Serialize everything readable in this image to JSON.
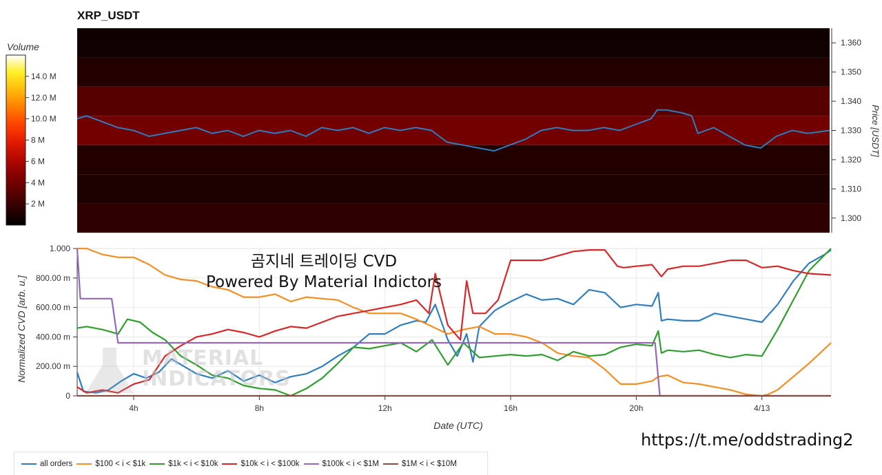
{
  "title": "XRP_USDT",
  "overlay": {
    "line1": "곰지네 트레이딩 CVD",
    "line2": "Powered By Material Indictors"
  },
  "watermark": {
    "line1": "MATERIAL",
    "line2": "INDICATORS"
  },
  "link": "https://t.me/oddstrading2",
  "colors": {
    "all_orders": "#2f7dbf",
    "s100_1k": "#f48d22",
    "s1k_10k": "#2e9e2e",
    "s10k_100k": "#d62728",
    "s100k_1m": "#9467bd",
    "s1m_10m": "#8c4a3c"
  },
  "chart_data": [
    {
      "type": "heatmap",
      "title": "XRP_USDT",
      "ylabel": "Price [USDT]",
      "ylim": [
        1.295,
        1.365
      ],
      "yticks": [
        "1.300",
        "1.310",
        "1.320",
        "1.330",
        "1.340",
        "1.350",
        "1.360"
      ],
      "colorbar": {
        "title": "Volume",
        "ticks": [
          "2 M",
          "4 M",
          "6 M",
          "8 M",
          "10.0 M",
          "12.0 M",
          "14.0 M"
        ],
        "tick_values": [
          2,
          4,
          6,
          8,
          10,
          12,
          14
        ],
        "max": 16
      },
      "bands": [
        {
          "price_low": 1.355,
          "price_high": 1.365,
          "volume_m": 0.6
        },
        {
          "price_low": 1.345,
          "price_high": 1.355,
          "volume_m": 1.2
        },
        {
          "price_low": 1.335,
          "price_high": 1.345,
          "volume_m": 3.0
        },
        {
          "price_low": 1.325,
          "price_high": 1.335,
          "volume_m": 4.0
        },
        {
          "price_low": 1.315,
          "price_high": 1.325,
          "volume_m": 1.2
        },
        {
          "price_low": 1.305,
          "price_high": 1.315,
          "volume_m": 1.0
        },
        {
          "price_low": 1.295,
          "price_high": 1.305,
          "volume_m": 1.6
        }
      ],
      "price_series": {
        "name": "price",
        "x": [
          2.2,
          2.5,
          3.0,
          3.5,
          4.0,
          4.5,
          5.0,
          5.5,
          6.0,
          6.5,
          7.0,
          7.5,
          8.0,
          8.5,
          9.0,
          9.5,
          10.0,
          10.5,
          11.0,
          11.5,
          12.0,
          12.5,
          13.0,
          13.5,
          14.0,
          14.5,
          15.0,
          15.5,
          16.0,
          16.5,
          17.0,
          17.5,
          18.0,
          18.5,
          19.0,
          19.5,
          20.0,
          20.5,
          20.7,
          21.0,
          21.5,
          21.8,
          22.0,
          22.5,
          23.0,
          23.5,
          24.0,
          24.5,
          25.0,
          25.5,
          26.2
        ],
        "y": [
          1.334,
          1.335,
          1.333,
          1.331,
          1.33,
          1.328,
          1.329,
          1.33,
          1.331,
          1.329,
          1.33,
          1.328,
          1.33,
          1.329,
          1.33,
          1.328,
          1.331,
          1.33,
          1.331,
          1.329,
          1.331,
          1.33,
          1.331,
          1.33,
          1.326,
          1.325,
          1.324,
          1.323,
          1.325,
          1.327,
          1.33,
          1.331,
          1.33,
          1.33,
          1.331,
          1.33,
          1.332,
          1.334,
          1.337,
          1.337,
          1.336,
          1.335,
          1.329,
          1.331,
          1.328,
          1.325,
          1.324,
          1.328,
          1.33,
          1.329,
          1.33
        ]
      }
    },
    {
      "type": "line",
      "xlabel": "Date (UTC)",
      "ylabel": "Normalized CVD [arb. u.]",
      "xlim": [
        2.2,
        26.2
      ],
      "ylim": [
        0,
        1000
      ],
      "x_ticks": [
        {
          "v": 4,
          "label": "4h"
        },
        {
          "v": 8,
          "label": "8h"
        },
        {
          "v": 12,
          "label": "12h"
        },
        {
          "v": 16,
          "label": "16h"
        },
        {
          "v": 20,
          "label": "20h"
        },
        {
          "v": 24,
          "label": "4/13"
        }
      ],
      "y_ticks": [
        {
          "v": 0,
          "label": "0"
        },
        {
          "v": 200,
          "label": "200.00 m"
        },
        {
          "v": 400,
          "label": "400.00 m"
        },
        {
          "v": 600,
          "label": "600.00 m"
        },
        {
          "v": 800,
          "label": "800.00 m"
        },
        {
          "v": 1000,
          "label": "1.000"
        }
      ],
      "grid": true,
      "legend_position": "bottom-left",
      "series": [
        {
          "key": "all_orders",
          "name": "all orders",
          "x": [
            2.2,
            2.4,
            2.8,
            3.2,
            3.6,
            4.0,
            4.4,
            4.8,
            5.2,
            5.6,
            6.0,
            6.5,
            7.0,
            7.5,
            8.0,
            8.5,
            9.0,
            9.5,
            10.0,
            10.5,
            11.0,
            11.5,
            12.0,
            12.5,
            13.0,
            13.3,
            13.6,
            14.0,
            14.3,
            14.6,
            14.8,
            15.0,
            15.5,
            16.0,
            16.5,
            17.0,
            17.5,
            18.0,
            18.5,
            19.0,
            19.5,
            20.0,
            20.5,
            20.7,
            20.8,
            21.0,
            21.5,
            22.0,
            22.5,
            23.0,
            23.5,
            24.0,
            24.5,
            25.0,
            25.5,
            26.0,
            26.2
          ],
          "y": [
            160,
            30,
            20,
            40,
            100,
            150,
            120,
            160,
            250,
            200,
            150,
            120,
            170,
            100,
            140,
            90,
            130,
            150,
            200,
            270,
            330,
            420,
            420,
            480,
            510,
            500,
            620,
            380,
            270,
            420,
            230,
            470,
            580,
            640,
            690,
            650,
            660,
            620,
            720,
            700,
            600,
            620,
            610,
            700,
            510,
            520,
            510,
            510,
            560,
            540,
            520,
            500,
            620,
            780,
            900,
            960,
            990
          ]
        },
        {
          "key": "s100_1k",
          "name": "$100 < i < $1k",
          "x": [
            2.2,
            2.5,
            3.0,
            3.5,
            4.0,
            4.5,
            5.0,
            5.5,
            6.0,
            6.5,
            7.0,
            7.5,
            8.0,
            8.5,
            9.0,
            9.5,
            10.0,
            10.5,
            11.0,
            11.5,
            12.0,
            12.5,
            13.0,
            13.5,
            14.0,
            14.5,
            15.0,
            15.5,
            16.0,
            16.5,
            17.0,
            17.5,
            18.0,
            18.5,
            19.0,
            19.5,
            20.0,
            20.5,
            20.7,
            21.0,
            21.5,
            22.0,
            22.5,
            23.0,
            23.5,
            24.0,
            24.2,
            24.5,
            25.0,
            25.5,
            26.2
          ],
          "y": [
            1000,
            1000,
            960,
            940,
            940,
            890,
            820,
            790,
            780,
            740,
            720,
            670,
            670,
            690,
            640,
            670,
            660,
            650,
            600,
            560,
            560,
            560,
            520,
            470,
            420,
            450,
            470,
            420,
            420,
            400,
            360,
            290,
            270,
            260,
            180,
            80,
            80,
            100,
            130,
            140,
            90,
            80,
            60,
            40,
            10,
            0,
            10,
            40,
            130,
            220,
            360
          ]
        },
        {
          "key": "s1k_10k",
          "name": "$1k < i < $10k",
          "x": [
            2.2,
            2.5,
            3.0,
            3.5,
            3.8,
            4.2,
            4.6,
            5.0,
            5.5,
            6.0,
            6.5,
            7.0,
            7.5,
            8.0,
            8.5,
            9.0,
            9.5,
            10.0,
            10.5,
            11.0,
            11.5,
            12.0,
            12.5,
            13.0,
            13.5,
            14.0,
            14.5,
            15.0,
            15.5,
            16.0,
            16.5,
            17.0,
            17.5,
            18.0,
            18.5,
            19.0,
            19.5,
            20.0,
            20.5,
            20.7,
            20.8,
            21.0,
            21.5,
            22.0,
            22.5,
            23.0,
            23.5,
            24.0,
            24.5,
            25.0,
            25.5,
            26.2
          ],
          "y": [
            460,
            470,
            450,
            420,
            520,
            500,
            430,
            380,
            270,
            210,
            140,
            120,
            70,
            50,
            40,
            0,
            50,
            120,
            220,
            330,
            320,
            340,
            360,
            300,
            380,
            210,
            360,
            260,
            270,
            280,
            270,
            280,
            240,
            300,
            270,
            280,
            330,
            350,
            340,
            440,
            290,
            310,
            300,
            310,
            280,
            260,
            280,
            270,
            450,
            650,
            850,
            1000
          ]
        },
        {
          "key": "s10k_100k",
          "name": "$10k < i < $100k",
          "x": [
            2.2,
            2.5,
            3.0,
            3.5,
            4.0,
            4.5,
            5.0,
            5.5,
            6.0,
            6.5,
            7.0,
            7.5,
            8.0,
            8.5,
            9.0,
            9.5,
            10.0,
            10.5,
            11.0,
            11.5,
            12.0,
            12.5,
            13.0,
            13.4,
            13.6,
            14.0,
            14.4,
            14.6,
            14.8,
            15.2,
            15.6,
            16.0,
            16.5,
            17.0,
            17.5,
            18.0,
            18.5,
            19.0,
            19.4,
            19.6,
            20.0,
            20.5,
            20.8,
            21.0,
            21.5,
            22.0,
            22.5,
            23.0,
            23.5,
            24.0,
            24.5,
            25.0,
            25.5,
            26.2
          ],
          "y": [
            60,
            20,
            40,
            20,
            80,
            110,
            270,
            340,
            400,
            420,
            450,
            430,
            400,
            440,
            470,
            460,
            500,
            540,
            560,
            580,
            600,
            620,
            650,
            560,
            830,
            480,
            380,
            780,
            560,
            560,
            650,
            920,
            920,
            920,
            950,
            980,
            990,
            990,
            880,
            870,
            880,
            890,
            810,
            860,
            880,
            880,
            900,
            920,
            920,
            870,
            880,
            850,
            830,
            820
          ]
        },
        {
          "key": "s100k_1m",
          "name": "$100k < i < $1M",
          "x": [
            2.2,
            2.3,
            3.3,
            3.5,
            20.6,
            20.75,
            26.2
          ],
          "y": [
            1000,
            660,
            660,
            360,
            360,
            0,
            0
          ]
        },
        {
          "key": "s1m_10m",
          "name": "$1M < i < $10M",
          "x": [
            2.2,
            26.2
          ],
          "y": [
            0,
            0
          ]
        }
      ]
    }
  ]
}
